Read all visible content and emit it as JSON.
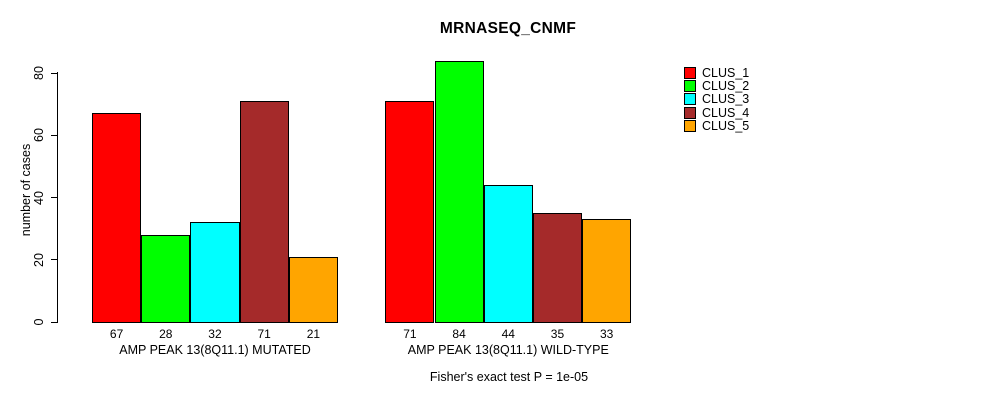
{
  "title": "MRNASEQ_CNMF",
  "footer": "Fisher's exact test P = 1e-05",
  "y_axis": {
    "label": "number of cases",
    "ticks": [
      0,
      20,
      40,
      60,
      80
    ]
  },
  "legend": {
    "items": [
      {
        "label": "CLUS_1",
        "color": "#FF0000"
      },
      {
        "label": "CLUS_2",
        "color": "#00FF00"
      },
      {
        "label": "CLUS_3",
        "color": "#00FFFF"
      },
      {
        "label": "CLUS_4",
        "color": "#A52A2A"
      },
      {
        "label": "CLUS_5",
        "color": "#FFA500"
      }
    ]
  },
  "chart_data": {
    "type": "bar",
    "title": "MRNASEQ_CNMF",
    "xlabel": "",
    "ylabel": "number of cases",
    "ylim": [
      0,
      80
    ],
    "y_ticks": [
      0,
      20,
      40,
      60,
      80
    ],
    "grid": false,
    "legend_position": "right",
    "categories": [
      "AMP PEAK 13(8Q11.1) MUTATED",
      "AMP PEAK 13(8Q11.1) WILD-TYPE"
    ],
    "series": [
      {
        "name": "CLUS_1",
        "color": "#FF0000",
        "values": [
          67,
          71
        ]
      },
      {
        "name": "CLUS_2",
        "color": "#00FF00",
        "values": [
          28,
          84
        ]
      },
      {
        "name": "CLUS_3",
        "color": "#00FFFF",
        "values": [
          32,
          44
        ]
      },
      {
        "name": "CLUS_4",
        "color": "#A52A2A",
        "values": [
          71,
          35
        ]
      },
      {
        "name": "CLUS_5",
        "color": "#FFA500",
        "values": [
          21,
          33
        ]
      }
    ],
    "bar_value_labels": [
      [
        67,
        28,
        32,
        71,
        21
      ],
      [
        71,
        84,
        44,
        35,
        33
      ]
    ],
    "annotation": "Fisher's exact test P = 1e-05"
  }
}
